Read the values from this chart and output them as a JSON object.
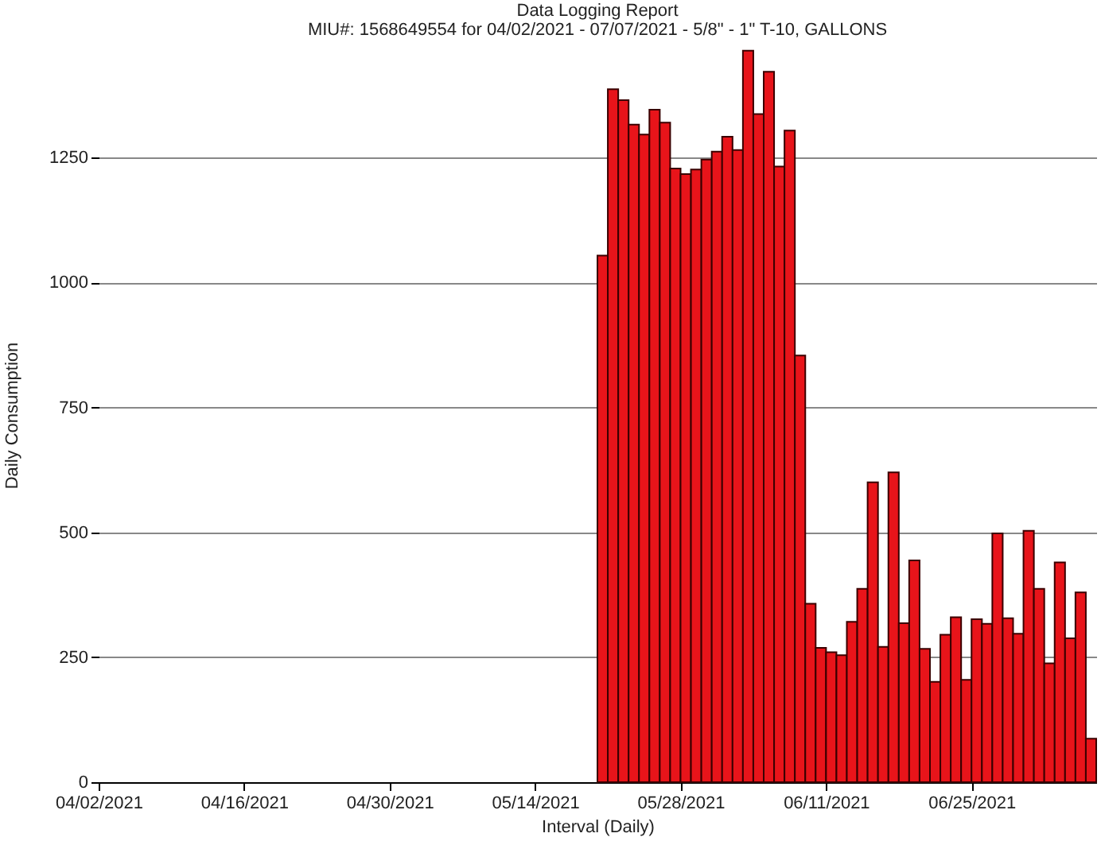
{
  "chart_data": {
    "type": "bar",
    "title": "Data Logging Report",
    "subtitle": "MIU#: 1568649554 for 04/02/2021 - 07/07/2021 - 5/8\" - 1\" T-10, GALLONS",
    "xlabel": "Interval (Daily)",
    "ylabel": "Daily Consumption",
    "x": [
      "2021-05-20",
      "2021-05-21",
      "2021-05-22",
      "2021-05-23",
      "2021-05-24",
      "2021-05-25",
      "2021-05-26",
      "2021-05-27",
      "2021-05-28",
      "2021-05-29",
      "2021-05-30",
      "2021-05-31",
      "2021-06-01",
      "2021-06-02",
      "2021-06-03",
      "2021-06-04",
      "2021-06-05",
      "2021-06-06",
      "2021-06-07",
      "2021-06-08",
      "2021-06-09",
      "2021-06-10",
      "2021-06-11",
      "2021-06-12",
      "2021-06-13",
      "2021-06-14",
      "2021-06-15",
      "2021-06-16",
      "2021-06-17",
      "2021-06-18",
      "2021-06-19",
      "2021-06-20",
      "2021-06-21",
      "2021-06-22",
      "2021-06-23",
      "2021-06-24",
      "2021-06-25",
      "2021-06-26",
      "2021-06-27",
      "2021-06-28",
      "2021-06-29",
      "2021-06-30",
      "2021-07-01",
      "2021-07-02",
      "2021-07-03",
      "2021-07-04",
      "2021-07-05",
      "2021-07-06"
    ],
    "values": [
      1054,
      1387,
      1365,
      1316,
      1296,
      1346,
      1320,
      1228,
      1217,
      1226,
      1246,
      1262,
      1292,
      1265,
      1464,
      1337,
      1422,
      1232,
      1304,
      854,
      357,
      269,
      260,
      254,
      321,
      387,
      600,
      271,
      620,
      318,
      444,
      267,
      201,
      295,
      330,
      205,
      326,
      317,
      498,
      328,
      297,
      503,
      387,
      238,
      440,
      288,
      380,
      87
    ],
    "color": "#e8141a",
    "xlim": [
      "2021-04-02",
      "2021-07-07"
    ],
    "xticks": [
      {
        "value": "2021-04-02",
        "label": "04/02/2021"
      },
      {
        "value": "2021-04-16",
        "label": "04/16/2021"
      },
      {
        "value": "2021-04-30",
        "label": "04/30/2021"
      },
      {
        "value": "2021-05-14",
        "label": "05/14/2021"
      },
      {
        "value": "2021-05-28",
        "label": "05/28/2021"
      },
      {
        "value": "2021-06-11",
        "label": "06/11/2021"
      },
      {
        "value": "2021-06-25",
        "label": "06/25/2021"
      }
    ],
    "ylim": [
      0,
      1470
    ],
    "yticks": [
      0,
      250,
      500,
      750,
      1000,
      1250
    ],
    "grid": "y"
  }
}
